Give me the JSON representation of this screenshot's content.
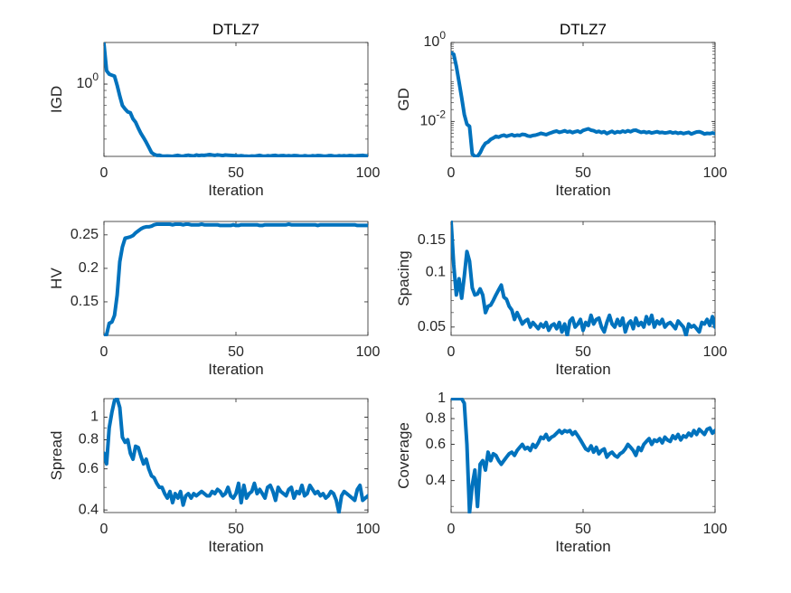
{
  "colors": {
    "line": "#0072BD",
    "axis": "#262626",
    "background": "#ffffff"
  },
  "chart_data": [
    {
      "type": "line",
      "title": "DTLZ7",
      "xlabel": "Iteration",
      "ylabel": "IGD",
      "yscale": "log",
      "xlim": [
        0,
        100
      ],
      "ylim": [
        0.3,
        2.0
      ],
      "xticks": [
        0,
        50,
        100
      ],
      "xticklabels": [
        "0",
        "50",
        "100"
      ],
      "yticks": [
        1
      ],
      "yticklabels": [
        "10^0"
      ],
      "x": [
        0,
        1,
        2,
        3,
        4,
        5,
        6,
        7,
        8,
        9,
        10,
        11,
        12,
        13,
        14,
        15,
        16,
        17,
        18,
        19,
        20,
        21,
        22,
        23,
        24,
        25,
        26,
        27,
        28,
        29,
        30,
        31,
        32,
        33,
        34,
        35,
        36,
        37,
        38,
        39,
        40,
        41,
        42,
        43,
        44,
        45,
        46,
        47,
        48,
        49,
        50,
        51,
        52,
        53,
        54,
        55,
        56,
        57,
        58,
        59,
        60,
        61,
        62,
        63,
        64,
        65,
        66,
        67,
        68,
        69,
        70,
        71,
        72,
        73,
        74,
        75,
        76,
        77,
        78,
        79,
        80,
        81,
        82,
        83,
        84,
        85,
        86,
        87,
        88,
        89,
        90,
        91,
        92,
        93,
        94,
        95,
        96,
        97,
        98,
        99,
        100
      ],
      "values": [
        1.95,
        1.25,
        1.18,
        1.16,
        1.14,
        0.98,
        0.82,
        0.7,
        0.66,
        0.63,
        0.62,
        0.56,
        0.53,
        0.48,
        0.44,
        0.41,
        0.38,
        0.35,
        0.32,
        0.31,
        0.305,
        0.306,
        0.302,
        0.301,
        0.302,
        0.301,
        0.3,
        0.303,
        0.305,
        0.302,
        0.301,
        0.304,
        0.306,
        0.303,
        0.302,
        0.307,
        0.304,
        0.306,
        0.305,
        0.307,
        0.309,
        0.307,
        0.305,
        0.308,
        0.306,
        0.304,
        0.307,
        0.306,
        0.305,
        0.304,
        0.303,
        0.302,
        0.303,
        0.302,
        0.301,
        0.3,
        0.302,
        0.301,
        0.303,
        0.305,
        0.302,
        0.301,
        0.303,
        0.302,
        0.304,
        0.305,
        0.302,
        0.303,
        0.304,
        0.302,
        0.303,
        0.302,
        0.304,
        0.303,
        0.302,
        0.301,
        0.303,
        0.302,
        0.301,
        0.303,
        0.302,
        0.304,
        0.303,
        0.302,
        0.301,
        0.303,
        0.304,
        0.302,
        0.301,
        0.303,
        0.302,
        0.303,
        0.302,
        0.304,
        0.303,
        0.302,
        0.303,
        0.304,
        0.305,
        0.303,
        0.302
      ]
    },
    {
      "type": "line",
      "title": "DTLZ7",
      "xlabel": "Iteration",
      "ylabel": "GD",
      "yscale": "log",
      "xlim": [
        0,
        100
      ],
      "ylim": [
        0.0013,
        1.0
      ],
      "xticks": [
        0,
        50,
        100
      ],
      "xticklabels": [
        "0",
        "50",
        "100"
      ],
      "yticks": [
        1,
        0.01
      ],
      "yticklabels": [
        "10^0",
        "10^-2"
      ],
      "x": [
        0,
        1,
        2,
        3,
        4,
        5,
        6,
        7,
        8,
        9,
        10,
        11,
        12,
        13,
        14,
        15,
        16,
        17,
        18,
        19,
        20,
        21,
        22,
        23,
        24,
        25,
        26,
        27,
        28,
        29,
        30,
        31,
        32,
        33,
        34,
        35,
        36,
        37,
        38,
        39,
        40,
        41,
        42,
        43,
        44,
        45,
        46,
        47,
        48,
        49,
        50,
        51,
        52,
        53,
        54,
        55,
        56,
        57,
        58,
        59,
        60,
        61,
        62,
        63,
        64,
        65,
        66,
        67,
        68,
        69,
        70,
        71,
        72,
        73,
        74,
        75,
        76,
        77,
        78,
        79,
        80,
        81,
        82,
        83,
        84,
        85,
        86,
        87,
        88,
        89,
        90,
        91,
        92,
        93,
        94,
        95,
        96,
        97,
        98,
        99,
        100
      ],
      "values": [
        0.55,
        0.5,
        0.25,
        0.1,
        0.04,
        0.015,
        0.0085,
        0.0075,
        0.0015,
        0.0013,
        0.0013,
        0.0016,
        0.0022,
        0.0028,
        0.003,
        0.0035,
        0.0038,
        0.0042,
        0.004,
        0.0043,
        0.0045,
        0.0042,
        0.0044,
        0.0046,
        0.0043,
        0.0045,
        0.0044,
        0.0047,
        0.0046,
        0.0043,
        0.0042,
        0.0044,
        0.0045,
        0.0047,
        0.005,
        0.0048,
        0.0046,
        0.0049,
        0.0052,
        0.0055,
        0.0057,
        0.0053,
        0.0055,
        0.0058,
        0.0054,
        0.0056,
        0.0052,
        0.0055,
        0.0057,
        0.0053,
        0.0059,
        0.0062,
        0.0065,
        0.006,
        0.0058,
        0.0054,
        0.0056,
        0.0052,
        0.0055,
        0.0049,
        0.0053,
        0.0056,
        0.0051,
        0.0055,
        0.0053,
        0.0057,
        0.0054,
        0.0058,
        0.0055,
        0.0059,
        0.006,
        0.0056,
        0.0053,
        0.0055,
        0.0052,
        0.0054,
        0.0051,
        0.0053,
        0.0055,
        0.0052,
        0.0053,
        0.0051,
        0.0052,
        0.0054,
        0.0051,
        0.0053,
        0.005,
        0.0052,
        0.0049,
        0.0051,
        0.0053,
        0.0048,
        0.0051,
        0.0054,
        0.0055,
        0.0052,
        0.0048,
        0.005,
        0.0049,
        0.0051,
        0.0049
      ]
    },
    {
      "type": "line",
      "title": "",
      "xlabel": "Iteration",
      "ylabel": "HV",
      "yscale": "linear",
      "xlim": [
        0,
        100
      ],
      "ylim": [
        0.1,
        0.27
      ],
      "xticks": [
        0,
        50,
        100
      ],
      "xticklabels": [
        "0",
        "50",
        "100"
      ],
      "yticks": [
        0.15,
        0.2,
        0.25
      ],
      "yticklabels": [
        "0.15",
        "0.2",
        "0.25"
      ],
      "x": [
        0,
        1,
        2,
        3,
        4,
        5,
        6,
        7,
        8,
        9,
        10,
        11,
        12,
        13,
        14,
        15,
        16,
        17,
        18,
        19,
        20,
        21,
        22,
        23,
        24,
        25,
        26,
        27,
        28,
        29,
        30,
        31,
        32,
        33,
        34,
        35,
        36,
        37,
        38,
        39,
        40,
        41,
        42,
        43,
        44,
        45,
        46,
        47,
        48,
        49,
        50,
        51,
        52,
        53,
        54,
        55,
        56,
        57,
        58,
        59,
        60,
        61,
        62,
        63,
        64,
        65,
        66,
        67,
        68,
        69,
        70,
        71,
        72,
        73,
        74,
        75,
        76,
        77,
        78,
        79,
        80,
        81,
        82,
        83,
        84,
        85,
        86,
        87,
        88,
        89,
        90,
        91,
        92,
        93,
        94,
        95,
        96,
        97,
        98,
        99,
        100
      ],
      "values": [
        0.1,
        0.101,
        0.118,
        0.12,
        0.13,
        0.16,
        0.21,
        0.232,
        0.245,
        0.246,
        0.247,
        0.249,
        0.253,
        0.256,
        0.259,
        0.261,
        0.262,
        0.262,
        0.263,
        0.265,
        0.266,
        0.266,
        0.266,
        0.266,
        0.266,
        0.266,
        0.265,
        0.266,
        0.266,
        0.266,
        0.265,
        0.266,
        0.266,
        0.265,
        0.265,
        0.265,
        0.265,
        0.266,
        0.265,
        0.265,
        0.265,
        0.265,
        0.265,
        0.265,
        0.264,
        0.264,
        0.264,
        0.264,
        0.264,
        0.265,
        0.264,
        0.264,
        0.265,
        0.265,
        0.265,
        0.265,
        0.265,
        0.265,
        0.265,
        0.264,
        0.264,
        0.265,
        0.265,
        0.265,
        0.265,
        0.265,
        0.265,
        0.265,
        0.265,
        0.265,
        0.266,
        0.265,
        0.265,
        0.265,
        0.265,
        0.265,
        0.265,
        0.265,
        0.265,
        0.265,
        0.265,
        0.264,
        0.265,
        0.265,
        0.265,
        0.265,
        0.265,
        0.265,
        0.265,
        0.265,
        0.265,
        0.265,
        0.265,
        0.265,
        0.265,
        0.265,
        0.264,
        0.264,
        0.264,
        0.264,
        0.264
      ]
    },
    {
      "type": "line",
      "title": "",
      "xlabel": "Iteration",
      "ylabel": "Spacing",
      "yscale": "log",
      "xlim": [
        0,
        100
      ],
      "ylim": [
        0.045,
        0.19
      ],
      "xticks": [
        0,
        50,
        100
      ],
      "xticklabels": [
        "0",
        "50",
        "100"
      ],
      "yticks": [
        0.05,
        0.1,
        0.15
      ],
      "yticklabels": [
        "0.05",
        "0.1",
        "0.15"
      ],
      "x": [
        0,
        1,
        2,
        3,
        4,
        5,
        6,
        7,
        8,
        9,
        10,
        11,
        12,
        13,
        14,
        15,
        16,
        17,
        18,
        19,
        20,
        21,
        22,
        23,
        24,
        25,
        26,
        27,
        28,
        29,
        30,
        31,
        32,
        33,
        34,
        35,
        36,
        37,
        38,
        39,
        40,
        41,
        42,
        43,
        44,
        45,
        46,
        47,
        48,
        49,
        50,
        51,
        52,
        53,
        54,
        55,
        56,
        57,
        58,
        59,
        60,
        61,
        62,
        63,
        64,
        65,
        66,
        67,
        68,
        69,
        70,
        71,
        72,
        73,
        74,
        75,
        76,
        77,
        78,
        79,
        80,
        81,
        82,
        83,
        84,
        85,
        86,
        87,
        88,
        89,
        90,
        91,
        92,
        93,
        94,
        95,
        96,
        97,
        98,
        99,
        100
      ],
      "values": [
        0.19,
        0.11,
        0.075,
        0.092,
        0.072,
        0.095,
        0.13,
        0.115,
        0.082,
        0.075,
        0.076,
        0.081,
        0.075,
        0.06,
        0.065,
        0.066,
        0.07,
        0.075,
        0.08,
        0.085,
        0.073,
        0.071,
        0.065,
        0.062,
        0.055,
        0.06,
        0.056,
        0.052,
        0.054,
        0.055,
        0.05,
        0.053,
        0.051,
        0.049,
        0.052,
        0.05,
        0.053,
        0.048,
        0.051,
        0.052,
        0.049,
        0.053,
        0.047,
        0.052,
        0.045,
        0.054,
        0.056,
        0.05,
        0.052,
        0.055,
        0.048,
        0.053,
        0.051,
        0.058,
        0.052,
        0.055,
        0.056,
        0.05,
        0.047,
        0.053,
        0.058,
        0.052,
        0.05,
        0.055,
        0.051,
        0.056,
        0.047,
        0.052,
        0.054,
        0.049,
        0.056,
        0.051,
        0.053,
        0.05,
        0.057,
        0.052,
        0.058,
        0.05,
        0.054,
        0.052,
        0.055,
        0.05,
        0.052,
        0.053,
        0.051,
        0.049,
        0.054,
        0.052,
        0.05,
        0.045,
        0.052,
        0.05,
        0.051,
        0.049,
        0.047,
        0.053,
        0.052,
        0.055,
        0.051,
        0.057,
        0.05
      ]
    },
    {
      "type": "line",
      "title": "",
      "xlabel": "Iteration",
      "ylabel": "Spread",
      "yscale": "log",
      "xlim": [
        0,
        100
      ],
      "ylim": [
        0.39,
        1.2
      ],
      "xticks": [
        0,
        50,
        100
      ],
      "xticklabels": [
        "0",
        "50",
        "100"
      ],
      "yticks": [
        0.4,
        0.6,
        0.8,
        1
      ],
      "yticklabels": [
        "0.4",
        "0.6",
        "0.8",
        "1"
      ],
      "x": [
        0,
        1,
        2,
        3,
        4,
        5,
        6,
        7,
        8,
        9,
        10,
        11,
        12,
        13,
        14,
        15,
        16,
        17,
        18,
        19,
        20,
        21,
        22,
        23,
        24,
        25,
        26,
        27,
        28,
        29,
        30,
        31,
        32,
        33,
        34,
        35,
        36,
        37,
        38,
        39,
        40,
        41,
        42,
        43,
        44,
        45,
        46,
        47,
        48,
        49,
        50,
        51,
        52,
        53,
        54,
        55,
        56,
        57,
        58,
        59,
        60,
        61,
        62,
        63,
        64,
        65,
        66,
        67,
        68,
        69,
        70,
        71,
        72,
        73,
        74,
        75,
        76,
        77,
        78,
        79,
        80,
        81,
        82,
        83,
        84,
        85,
        86,
        87,
        88,
        89,
        90,
        91,
        92,
        93,
        94,
        95,
        96,
        97,
        98,
        99,
        100
      ],
      "values": [
        0.7,
        0.63,
        0.9,
        1.05,
        1.18,
        1.2,
        1.1,
        0.82,
        0.78,
        0.8,
        0.7,
        0.66,
        0.75,
        0.74,
        0.68,
        0.63,
        0.66,
        0.6,
        0.56,
        0.55,
        0.52,
        0.5,
        0.5,
        0.47,
        0.45,
        0.48,
        0.43,
        0.47,
        0.45,
        0.48,
        0.42,
        0.46,
        0.47,
        0.45,
        0.47,
        0.46,
        0.47,
        0.48,
        0.47,
        0.46,
        0.46,
        0.48,
        0.47,
        0.49,
        0.48,
        0.46,
        0.47,
        0.5,
        0.46,
        0.45,
        0.47,
        0.52,
        0.43,
        0.51,
        0.45,
        0.47,
        0.48,
        0.52,
        0.47,
        0.49,
        0.47,
        0.45,
        0.5,
        0.51,
        0.48,
        0.44,
        0.5,
        0.48,
        0.47,
        0.46,
        0.49,
        0.5,
        0.45,
        0.48,
        0.47,
        0.51,
        0.46,
        0.47,
        0.51,
        0.49,
        0.47,
        0.48,
        0.46,
        0.47,
        0.45,
        0.46,
        0.48,
        0.47,
        0.44,
        0.39,
        0.46,
        0.48,
        0.47,
        0.46,
        0.45,
        0.44,
        0.49,
        0.51,
        0.44,
        0.45,
        0.46
      ]
    },
    {
      "type": "line",
      "title": "",
      "xlabel": "Iteration",
      "ylabel": "Coverage",
      "yscale": "log",
      "xlim": [
        0,
        100
      ],
      "ylim": [
        0.28,
        1.0
      ],
      "xticks": [
        0,
        50,
        100
      ],
      "xticklabels": [
        "0",
        "50",
        "100"
      ],
      "yticks": [
        0.4,
        0.6,
        0.8,
        1
      ],
      "yticklabels": [
        "0.4",
        "0.6",
        "0.8",
        "1"
      ],
      "x": [
        0,
        1,
        2,
        3,
        4,
        5,
        6,
        7,
        8,
        9,
        10,
        11,
        12,
        13,
        14,
        15,
        16,
        17,
        18,
        19,
        20,
        21,
        22,
        23,
        24,
        25,
        26,
        27,
        28,
        29,
        30,
        31,
        32,
        33,
        34,
        35,
        36,
        37,
        38,
        39,
        40,
        41,
        42,
        43,
        44,
        45,
        46,
        47,
        48,
        49,
        50,
        51,
        52,
        53,
        54,
        55,
        56,
        57,
        58,
        59,
        60,
        61,
        62,
        63,
        64,
        65,
        66,
        67,
        68,
        69,
        70,
        71,
        72,
        73,
        74,
        75,
        76,
        77,
        78,
        79,
        80,
        81,
        82,
        83,
        84,
        85,
        86,
        87,
        88,
        89,
        90,
        91,
        92,
        93,
        94,
        95,
        96,
        97,
        98,
        99,
        100
      ],
      "values": [
        1.0,
        1.0,
        1.0,
        1.0,
        1.0,
        0.95,
        0.6,
        0.28,
        0.38,
        0.45,
        0.3,
        0.48,
        0.5,
        0.45,
        0.55,
        0.5,
        0.54,
        0.53,
        0.5,
        0.48,
        0.5,
        0.52,
        0.54,
        0.55,
        0.53,
        0.56,
        0.58,
        0.6,
        0.57,
        0.58,
        0.56,
        0.6,
        0.58,
        0.61,
        0.65,
        0.64,
        0.67,
        0.63,
        0.65,
        0.66,
        0.68,
        0.7,
        0.68,
        0.7,
        0.69,
        0.7,
        0.67,
        0.69,
        0.66,
        0.63,
        0.6,
        0.57,
        0.56,
        0.59,
        0.55,
        0.58,
        0.54,
        0.56,
        0.57,
        0.52,
        0.54,
        0.55,
        0.53,
        0.52,
        0.54,
        0.55,
        0.57,
        0.6,
        0.58,
        0.56,
        0.53,
        0.58,
        0.56,
        0.6,
        0.62,
        0.64,
        0.6,
        0.63,
        0.62,
        0.64,
        0.61,
        0.65,
        0.63,
        0.62,
        0.66,
        0.64,
        0.67,
        0.63,
        0.66,
        0.65,
        0.68,
        0.66,
        0.7,
        0.67,
        0.71,
        0.69,
        0.67,
        0.71,
        0.72,
        0.68,
        0.7
      ]
    }
  ]
}
